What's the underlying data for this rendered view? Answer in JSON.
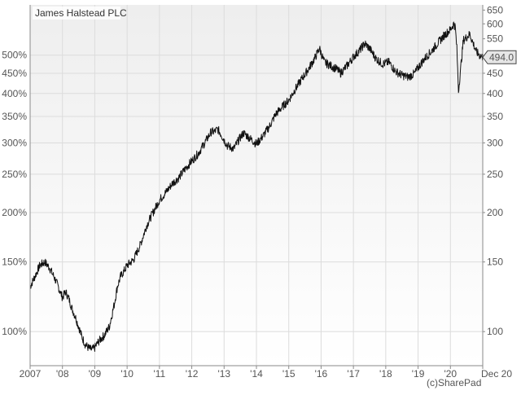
{
  "chart_data": {
    "type": "line",
    "title": "James Halstead PLC",
    "watermark": "(c)SharePad",
    "last_price_label": "494.0",
    "x_ticks": [
      "2007",
      "'08",
      "'09",
      "'10",
      "'11",
      "'12",
      "'13",
      "'14",
      "'15",
      "'16",
      "'17",
      "'18",
      "'19",
      "'20",
      "Dec 20"
    ],
    "left_axis": {
      "scale": "log",
      "ticks": [
        "100%",
        "150%",
        "200%",
        "250%",
        "300%",
        "350%",
        "400%",
        "450%",
        "500%"
      ],
      "tick_values": [
        100,
        150,
        200,
        250,
        300,
        350,
        400,
        450,
        500
      ]
    },
    "right_axis": {
      "scale": "log",
      "ticks": [
        "100",
        "150",
        "200",
        "250",
        "300",
        "350",
        "400",
        "450",
        "500",
        "550",
        "600",
        "650"
      ],
      "tick_values": [
        100,
        150,
        200,
        250,
        300,
        350,
        400,
        450,
        500,
        550,
        600,
        650
      ],
      "ylim": [
        82,
        670
      ]
    },
    "grid": true,
    "colors": {
      "line": "#111111",
      "grid": "#dcdcdc",
      "plot_bg_top": "#eeeeee",
      "plot_bg_bottom": "#ffffff",
      "label_bg": "#e6e6e6"
    },
    "series": [
      {
        "x": [
          2007.0,
          2007.15,
          2007.3,
          2007.45,
          2007.6,
          2007.75,
          2007.9,
          2008.0,
          2008.1,
          2008.2,
          2008.3,
          2008.4,
          2008.5,
          2008.6,
          2008.7,
          2008.8,
          2008.9,
          2009.0,
          2009.1,
          2009.2,
          2009.3,
          2009.45,
          2009.6,
          2009.7,
          2009.8,
          2009.9,
          2010.0,
          2010.2,
          2010.4,
          2010.6,
          2010.8,
          2011.0,
          2011.2,
          2011.4,
          2011.6,
          2011.8,
          2012.0,
          2012.2,
          2012.4,
          2012.6,
          2012.7,
          2012.8,
          2012.9,
          2013.0,
          2013.1,
          2013.3,
          2013.45,
          2013.6,
          2013.8,
          2014.0,
          2014.2,
          2014.4,
          2014.6,
          2014.8,
          2015.0,
          2015.2,
          2015.4,
          2015.6,
          2015.8,
          2015.95,
          2016.1,
          2016.3,
          2016.5,
          2016.6,
          2016.8,
          2017.0,
          2017.2,
          2017.35,
          2017.5,
          2017.7,
          2017.9,
          2018.1,
          2018.3,
          2018.5,
          2018.7,
          2018.9,
          2019.0,
          2019.2,
          2019.4,
          2019.6,
          2019.8,
          2020.0,
          2020.1,
          2020.15,
          2020.2,
          2020.25,
          2020.4,
          2020.6,
          2020.8,
          2020.9,
          2021.0
        ],
        "y": [
          130,
          138,
          147,
          150,
          145,
          137,
          128,
          122,
          126,
          121,
          114,
          109,
          103,
          97,
          93,
          91,
          90,
          91,
          94,
          96,
          98,
          103,
          117,
          130,
          138,
          142,
          147,
          152,
          165,
          185,
          200,
          215,
          225,
          237,
          245,
          258,
          270,
          282,
          300,
          320,
          320,
          325,
          316,
          305,
          295,
          290,
          305,
          318,
          308,
          298,
          312,
          330,
          355,
          370,
          385,
          410,
          435,
          460,
          490,
          520,
          480,
          470,
          460,
          450,
          470,
          495,
          515,
          535,
          520,
          490,
          475,
          480,
          455,
          445,
          440,
          450,
          465,
          490,
          510,
          535,
          560,
          580,
          600,
          590,
          520,
          405,
          545,
          565,
          510,
          500,
          494
        ]
      }
    ]
  }
}
